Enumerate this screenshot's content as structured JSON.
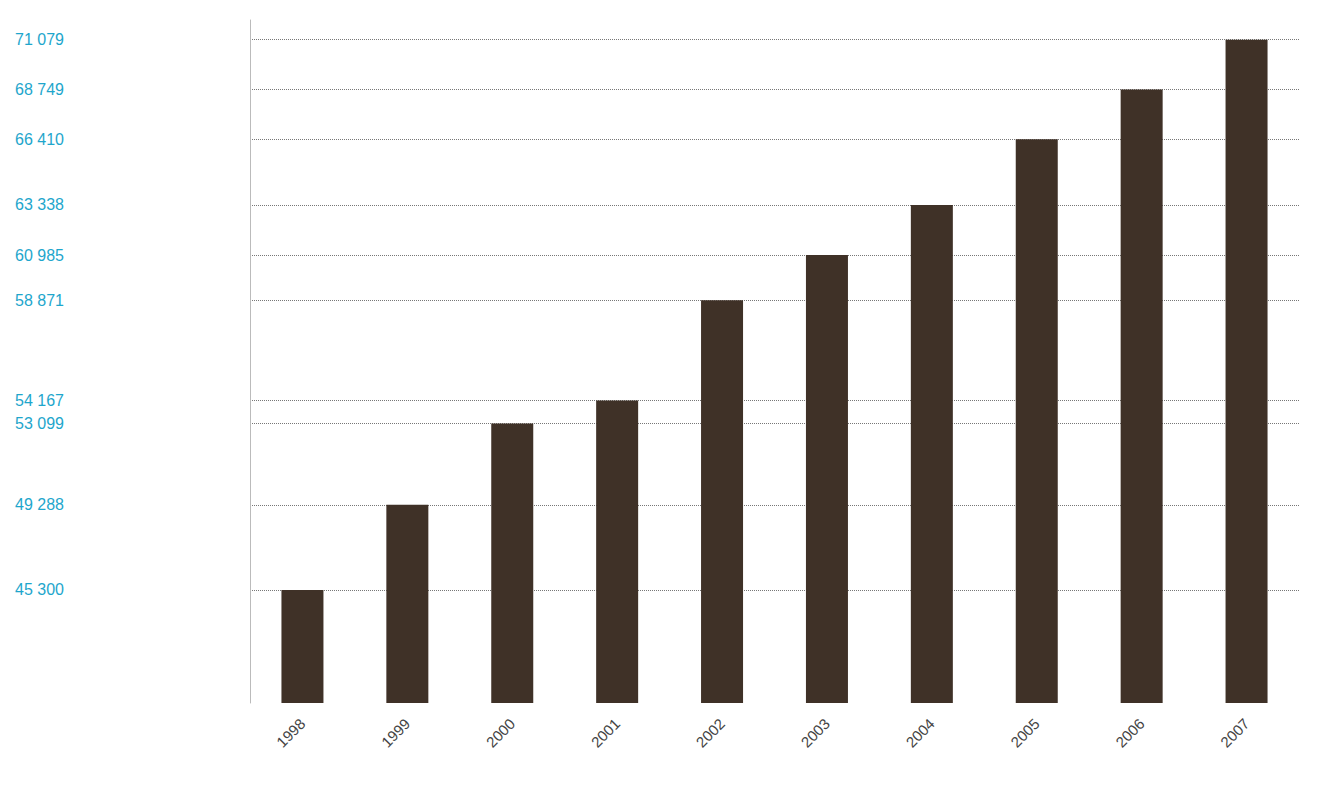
{
  "chart_data": {
    "type": "bar",
    "categories": [
      "1998",
      "1999",
      "2000",
      "2001",
      "2002",
      "2003",
      "2004",
      "2005",
      "2006",
      "2007"
    ],
    "values": [
      45300,
      49288,
      53099,
      54167,
      58871,
      60985,
      63338,
      66410,
      68749,
      71079
    ],
    "color": "#3f3127",
    "ylim": [
      40000,
      72000
    ],
    "yticks": [
      {
        "value": 45300,
        "label": "45 300"
      },
      {
        "value": 49288,
        "label": "49 288"
      },
      {
        "value": 53099,
        "label": "53 099"
      },
      {
        "value": 54167,
        "label": "54 167"
      },
      {
        "value": 58871,
        "label": "58 871"
      },
      {
        "value": 60985,
        "label": "60 985"
      },
      {
        "value": 63338,
        "label": "63 338"
      },
      {
        "value": 66410,
        "label": "66 410"
      },
      {
        "value": 68749,
        "label": "68 749"
      },
      {
        "value": 71079,
        "label": "71 079"
      }
    ],
    "grid": true
  }
}
